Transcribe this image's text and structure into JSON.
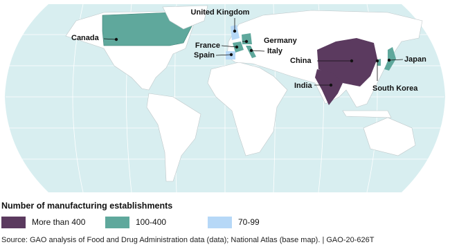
{
  "map": {
    "labels": [
      "Canada",
      "United Kingdom",
      "Germany",
      "France",
      "Italy",
      "Spain",
      "China",
      "India",
      "Japan",
      "South Korea"
    ],
    "legend": {
      "title": "Number of manufacturing establishments",
      "items": [
        {
          "label": "More than 400",
          "color": "#5b3a5f"
        },
        {
          "label": "100-400",
          "color": "#5fa89c"
        },
        {
          "label": "70-99",
          "color": "#b6d8f7"
        }
      ]
    }
  },
  "source": "Source: GAO analysis of Food and Drug Administration data (data); National Atlas (base map).  |  GAO-20-626T"
}
